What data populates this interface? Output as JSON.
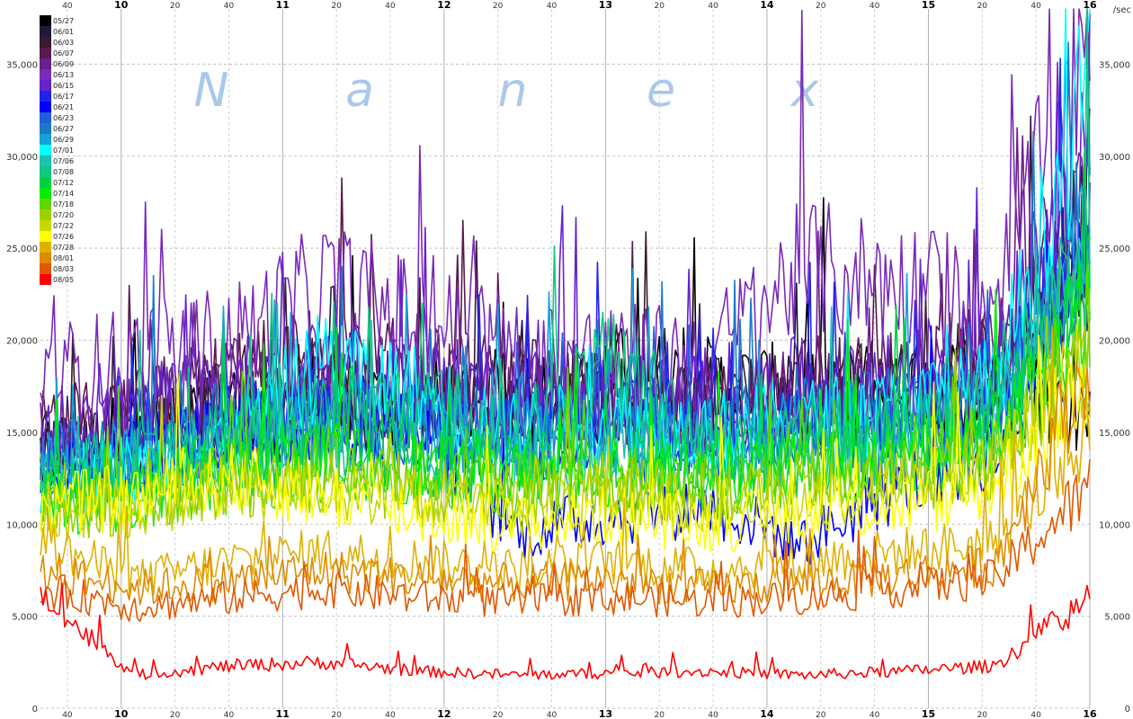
{
  "chart_data": {
    "type": "line",
    "watermark": [
      "N",
      "a",
      "n",
      "e",
      "x"
    ],
    "y_unit_label": "/sec",
    "ylim": [
      0,
      38000
    ],
    "y_ticks": [
      0,
      5000,
      10000,
      15000,
      20000,
      25000,
      30000,
      35000
    ],
    "y_tick_labels": [
      "0",
      "5,000",
      "10,000",
      "15,000",
      "20,000",
      "25,000",
      "30,000",
      "35,000"
    ],
    "x_axis": "time of day (hours, ticks every 20 minutes)",
    "x_start": "9:30",
    "x_end": "16:00",
    "x_ticks": [
      {
        "t": 9.6667,
        "label": "40",
        "major": false
      },
      {
        "t": 10.0,
        "label": "10",
        "major": true
      },
      {
        "t": 10.3333,
        "label": "20",
        "major": false
      },
      {
        "t": 10.6667,
        "label": "40",
        "major": false
      },
      {
        "t": 11.0,
        "label": "11",
        "major": true
      },
      {
        "t": 11.3333,
        "label": "20",
        "major": false
      },
      {
        "t": 11.6667,
        "label": "40",
        "major": false
      },
      {
        "t": 12.0,
        "label": "12",
        "major": true
      },
      {
        "t": 12.3333,
        "label": "20",
        "major": false
      },
      {
        "t": 12.6667,
        "label": "40",
        "major": false
      },
      {
        "t": 13.0,
        "label": "13",
        "major": true
      },
      {
        "t": 13.3333,
        "label": "20",
        "major": false
      },
      {
        "t": 13.6667,
        "label": "40",
        "major": false
      },
      {
        "t": 14.0,
        "label": "14",
        "major": true
      },
      {
        "t": 14.3333,
        "label": "20",
        "major": false
      },
      {
        "t": 14.6667,
        "label": "40",
        "major": false
      },
      {
        "t": 15.0,
        "label": "15",
        "major": true
      },
      {
        "t": 15.3333,
        "label": "20",
        "major": false
      },
      {
        "t": 15.6667,
        "label": "40",
        "major": false
      },
      {
        "t": 16.0,
        "label": "16",
        "major": true
      }
    ],
    "grid": true,
    "legend_position": "top-left",
    "series": [
      {
        "name": "05/27",
        "color": "#000000",
        "values": [
          14000,
          15000,
          16500,
          17000,
          16500,
          17000,
          18000,
          17500,
          17000,
          17500,
          18000,
          16000
        ]
      },
      {
        "name": "06/01",
        "color": "#1c1c3a",
        "values": [
          13500,
          14500,
          16000,
          16500,
          16000,
          16500,
          17000,
          16500,
          16500,
          17000,
          17500,
          27000
        ]
      },
      {
        "name": "06/03",
        "color": "#3a1a2e",
        "values": [
          14000,
          15000,
          17000,
          17500,
          16500,
          17000,
          16500,
          16000,
          17000,
          17500,
          18500,
          24000
        ]
      },
      {
        "name": "06/07",
        "color": "#5a1a4e",
        "values": [
          15000,
          16000,
          18000,
          19000,
          18000,
          17500,
          17000,
          16500,
          17500,
          18000,
          19000,
          26000
        ]
      },
      {
        "name": "06/09",
        "color": "#6a1f8a",
        "values": [
          14500,
          15500,
          17500,
          18000,
          17000,
          16500,
          16500,
          16000,
          17000,
          17500,
          18500,
          30000
        ]
      },
      {
        "name": "06/13",
        "color": "#7a2ab8",
        "values": [
          18000,
          19000,
          20000,
          23000,
          21000,
          19500,
          19000,
          19000,
          24000,
          23000,
          22000,
          36500
        ]
      },
      {
        "name": "06/15",
        "color": "#6622cc",
        "values": [
          15000,
          16000,
          17500,
          18500,
          17500,
          17000,
          17000,
          16500,
          17500,
          18000,
          19500,
          33000
        ]
      },
      {
        "name": "06/17",
        "color": "#2222ee",
        "values": [
          13000,
          14000,
          15500,
          16000,
          15500,
          15000,
          15500,
          15000,
          15500,
          16000,
          17000,
          26000
        ]
      },
      {
        "name": "06/21",
        "color": "#0000ff",
        "values": [
          12500,
          13500,
          15000,
          15500,
          15000,
          9500,
          10500,
          11000,
          9000,
          12000,
          14000,
          24000
        ]
      },
      {
        "name": "06/23",
        "color": "#1f5fd8",
        "values": [
          13000,
          13500,
          15000,
          15500,
          15000,
          14500,
          15000,
          14500,
          15000,
          15500,
          16500,
          25000
        ]
      },
      {
        "name": "06/27",
        "color": "#1a7ac8",
        "values": [
          13500,
          14000,
          15500,
          16000,
          15500,
          15000,
          15500,
          15000,
          15500,
          16000,
          17000,
          27000
        ]
      },
      {
        "name": "06/29",
        "color": "#18a0d8",
        "values": [
          13000,
          13500,
          15000,
          15500,
          15000,
          14500,
          15000,
          14500,
          15000,
          15500,
          16500,
          26000
        ]
      },
      {
        "name": "07/01",
        "color": "#00ffff",
        "values": [
          12500,
          13000,
          14500,
          19000,
          17000,
          15000,
          15500,
          15000,
          15500,
          16000,
          17500,
          34000
        ]
      },
      {
        "name": "07/06",
        "color": "#20c0b0",
        "values": [
          12000,
          12500,
          14000,
          14500,
          14000,
          13500,
          14000,
          13500,
          14000,
          14500,
          15500,
          25000
        ]
      },
      {
        "name": "07/08",
        "color": "#10c880",
        "values": [
          12500,
          13500,
          15000,
          16000,
          16500,
          15000,
          19000,
          14500,
          15000,
          15000,
          16000,
          26000
        ]
      },
      {
        "name": "07/12",
        "color": "#00d040",
        "values": [
          11500,
          12000,
          13500,
          14000,
          13500,
          13000,
          13500,
          13000,
          13500,
          14000,
          15000,
          23000
        ]
      },
      {
        "name": "07/14",
        "color": "#00ee00",
        "values": [
          11000,
          11500,
          13000,
          13500,
          13000,
          12500,
          13000,
          12500,
          13000,
          13500,
          14500,
          22000
        ]
      },
      {
        "name": "07/18",
        "color": "#60d800",
        "values": [
          11000,
          11500,
          12500,
          13000,
          12500,
          12000,
          12500,
          12000,
          12500,
          13000,
          14000,
          21000
        ]
      },
      {
        "name": "07/20",
        "color": "#a0d000",
        "values": [
          10500,
          11000,
          12000,
          12500,
          12000,
          11500,
          12000,
          11500,
          12000,
          12500,
          13500,
          20000
        ]
      },
      {
        "name": "07/22",
        "color": "#c8d800",
        "values": [
          10500,
          11000,
          12000,
          12000,
          11500,
          11000,
          11500,
          11000,
          11500,
          12000,
          13000,
          19000
        ]
      },
      {
        "name": "07/26",
        "color": "#ffff00",
        "values": [
          11000,
          11500,
          12500,
          11500,
          10500,
          10000,
          10500,
          10000,
          10500,
          11000,
          12000,
          18000
        ]
      },
      {
        "name": "07/28",
        "color": "#e0b000",
        "values": [
          9000,
          7000,
          8000,
          8500,
          8000,
          7500,
          8000,
          7500,
          8000,
          8500,
          9000,
          15000
        ]
      },
      {
        "name": "08/01",
        "color": "#e08800",
        "values": [
          7500,
          6500,
          7000,
          7500,
          7000,
          6800,
          7000,
          6500,
          6800,
          7200,
          7800,
          19000
        ]
      },
      {
        "name": "08/03",
        "color": "#e05800",
        "values": [
          6500,
          5500,
          6000,
          6500,
          6000,
          5800,
          6000,
          5800,
          6000,
          6500,
          7000,
          12000
        ]
      },
      {
        "name": "08/05",
        "color": "#ff0000",
        "values": [
          6000,
          1800,
          2300,
          2500,
          2000,
          1800,
          1900,
          2000,
          1800,
          2000,
          2300,
          6000
        ]
      }
    ]
  }
}
